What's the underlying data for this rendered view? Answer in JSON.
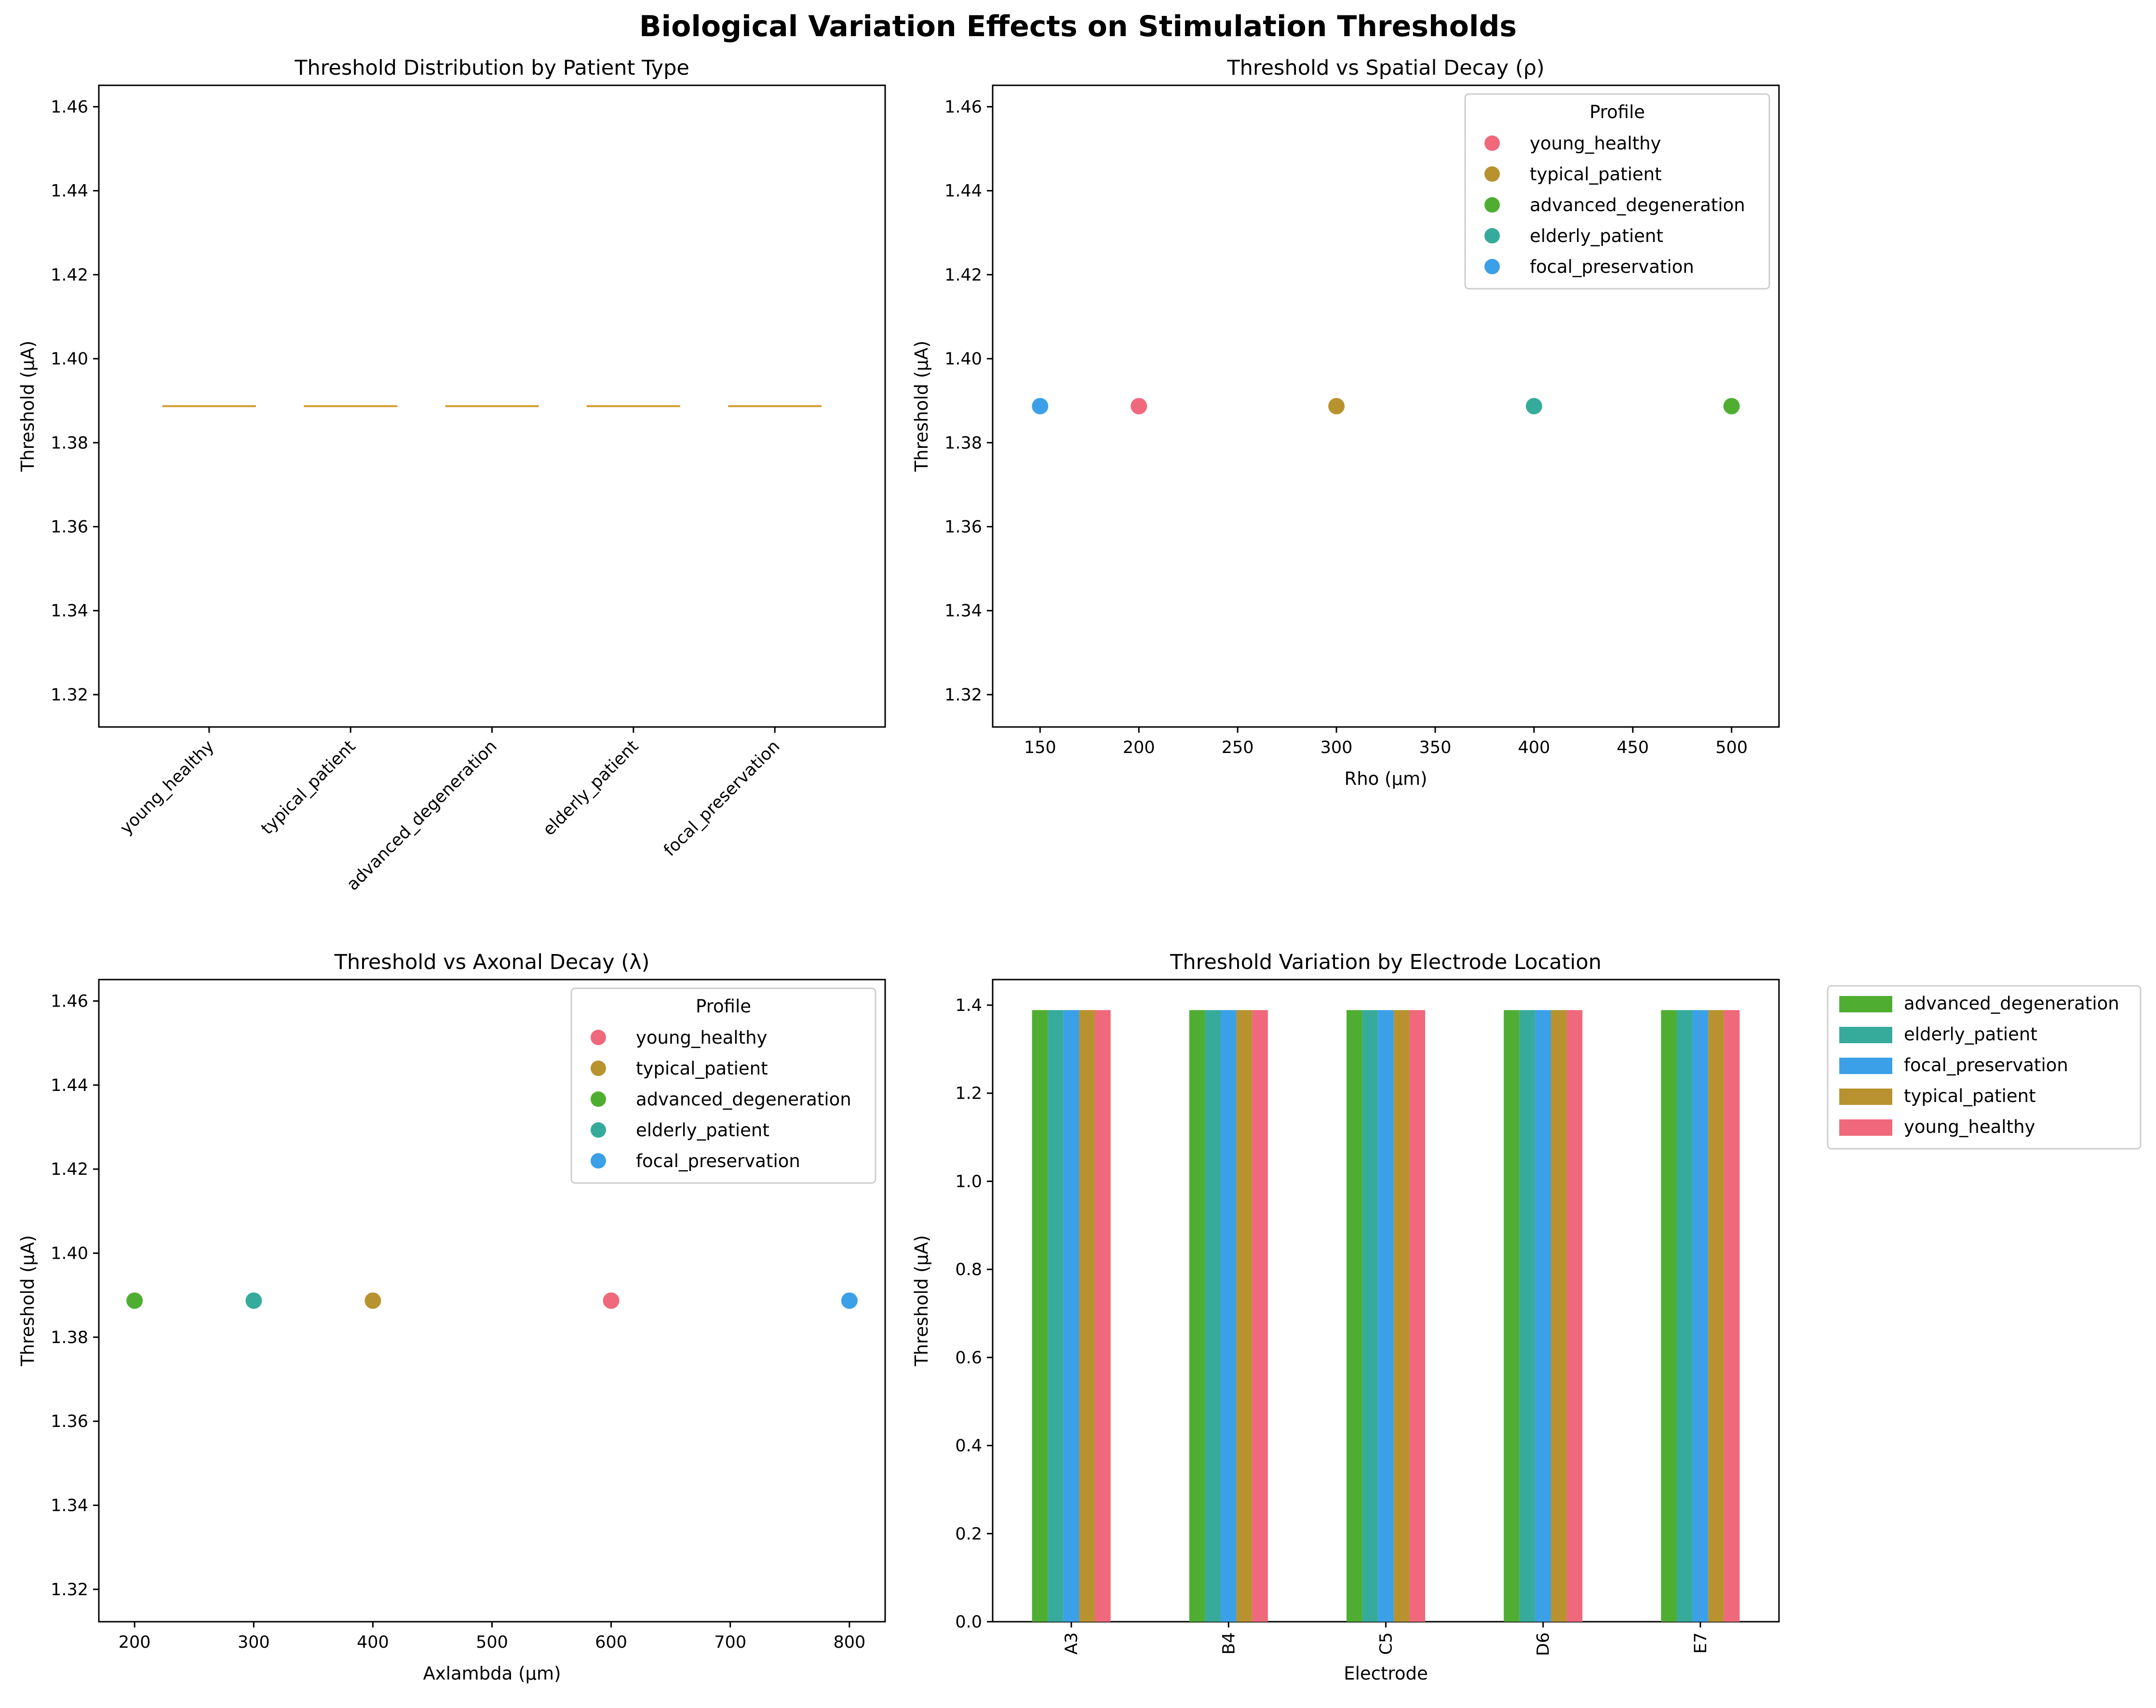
{
  "figure": {
    "title": "Biological Variation Effects on Stimulation Thresholds"
  },
  "colors": {
    "young_healthy": "#f0687c",
    "typical_patient": "#b8922f",
    "advanced_degeneration": "#4fae32",
    "elderly_patient": "#36ab9b",
    "focal_preservation": "#3ba0e7",
    "median_line": "#d19b2c"
  },
  "chart_data": [
    {
      "id": "box",
      "type": "box",
      "title": "Threshold Distribution by Patient Type",
      "xlabel": "",
      "ylabel": "Threshold (µA)",
      "categories": [
        "young_healthy",
        "typical_patient",
        "advanced_degeneration",
        "elderly_patient",
        "focal_preservation"
      ],
      "values": [
        1.3887,
        1.3887,
        1.3887,
        1.3887,
        1.3887
      ],
      "ylim": [
        1.3123,
        1.4651
      ],
      "yticks": [
        "1.32",
        "1.34",
        "1.36",
        "1.38",
        "1.40",
        "1.42",
        "1.44",
        "1.46"
      ],
      "grid": false
    },
    {
      "id": "rho",
      "type": "scatter",
      "title": "Threshold vs Spatial Decay (ρ)",
      "xlabel": "Rho (µm)",
      "ylabel": "Threshold (µA)",
      "xlim": [
        126,
        524
      ],
      "ylim": [
        1.3123,
        1.4651
      ],
      "xticks": [
        "150",
        "200",
        "250",
        "300",
        "350",
        "400",
        "450",
        "500"
      ],
      "yticks": [
        "1.32",
        "1.34",
        "1.36",
        "1.38",
        "1.40",
        "1.42",
        "1.44",
        "1.46"
      ],
      "legend": {
        "title": "Profile",
        "position": "upper right"
      },
      "series": [
        {
          "name": "young_healthy",
          "x": 200,
          "y": 1.3887
        },
        {
          "name": "typical_patient",
          "x": 300,
          "y": 1.3887
        },
        {
          "name": "advanced_degeneration",
          "x": 500,
          "y": 1.3887
        },
        {
          "name": "elderly_patient",
          "x": 400,
          "y": 1.3887
        },
        {
          "name": "focal_preservation",
          "x": 150,
          "y": 1.3887
        }
      ],
      "grid": false
    },
    {
      "id": "lambda",
      "type": "scatter",
      "title": "Threshold vs Axonal Decay (λ)",
      "xlabel": "Axlambda (µm)",
      "ylabel": "Threshold (µA)",
      "xlim": [
        170,
        830
      ],
      "ylim": [
        1.3123,
        1.4651
      ],
      "xticks": [
        "200",
        "300",
        "400",
        "500",
        "600",
        "700",
        "800"
      ],
      "yticks": [
        "1.32",
        "1.34",
        "1.36",
        "1.38",
        "1.40",
        "1.42",
        "1.44",
        "1.46"
      ],
      "legend": {
        "title": "Profile",
        "position": "upper right"
      },
      "series": [
        {
          "name": "young_healthy",
          "x": 600,
          "y": 1.3887
        },
        {
          "name": "typical_patient",
          "x": 400,
          "y": 1.3887
        },
        {
          "name": "advanced_degeneration",
          "x": 200,
          "y": 1.3887
        },
        {
          "name": "elderly_patient",
          "x": 300,
          "y": 1.3887
        },
        {
          "name": "focal_preservation",
          "x": 800,
          "y": 1.3887
        }
      ],
      "grid": false
    },
    {
      "id": "bars",
      "type": "bar",
      "title": "Threshold Variation by Electrode Location",
      "xlabel": "Electrode",
      "ylabel": "Threshold (µA)",
      "categories": [
        "A3",
        "B4",
        "C5",
        "D6",
        "E7"
      ],
      "ylim": [
        0,
        1.458
      ],
      "yticks": [
        "0.0",
        "0.2",
        "0.4",
        "0.6",
        "0.8",
        "1.0",
        "1.2",
        "1.4"
      ],
      "legend": {
        "position": "outside upper right"
      },
      "series": [
        {
          "name": "advanced_degeneration",
          "values": [
            1.3887,
            1.3887,
            1.3887,
            1.3887,
            1.3887
          ]
        },
        {
          "name": "elderly_patient",
          "values": [
            1.3887,
            1.3887,
            1.3887,
            1.3887,
            1.3887
          ]
        },
        {
          "name": "focal_preservation",
          "values": [
            1.3887,
            1.3887,
            1.3887,
            1.3887,
            1.3887
          ]
        },
        {
          "name": "typical_patient",
          "values": [
            1.3887,
            1.3887,
            1.3887,
            1.3887,
            1.3887
          ]
        },
        {
          "name": "young_healthy",
          "values": [
            1.3887,
            1.3887,
            1.3887,
            1.3887,
            1.3887
          ]
        }
      ],
      "grid": false
    }
  ]
}
